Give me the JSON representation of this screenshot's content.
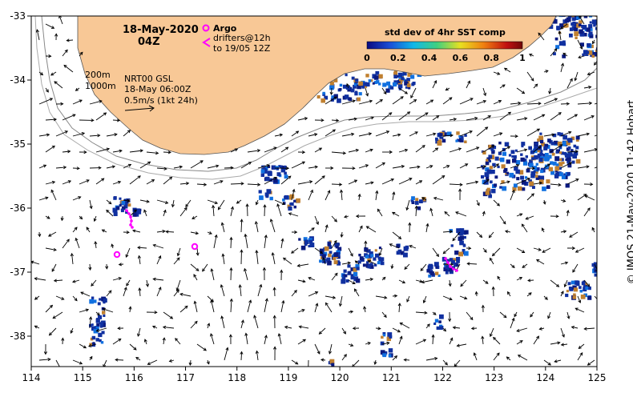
{
  "map": {
    "date_label": "18-May-2020",
    "time_label": "04Z",
    "legend_argo": "Argo",
    "legend_drifters_line1": "drifters@12h",
    "legend_drifters_line2": "to 19/05 12Z",
    "isobath_200": "200m",
    "isobath_1000": "1000m",
    "source_line": "NRT00 GSL",
    "source_date": "18-May 06:00Z",
    "vector_scale": "0.5m/s (1kt 24h)",
    "colorbar_title": "std dev of 4hr SST comp",
    "colorbar_ticks": [
      "0",
      "0.2",
      "0.4",
      "0.6",
      "0.8",
      "1"
    ],
    "credit": "©  IMOS 21-May-2020 11:42 Hobart",
    "x_ticks": [
      "114",
      "115",
      "116",
      "117",
      "118",
      "119",
      "120",
      "121",
      "122",
      "123",
      "124",
      "125"
    ],
    "y_ticks": [
      "-33",
      "-34",
      "-35",
      "-36",
      "-37",
      "-38"
    ],
    "land_color": "#f8c896",
    "patch_color": "#1030a0",
    "marker_color": "#ff00ff"
  }
}
